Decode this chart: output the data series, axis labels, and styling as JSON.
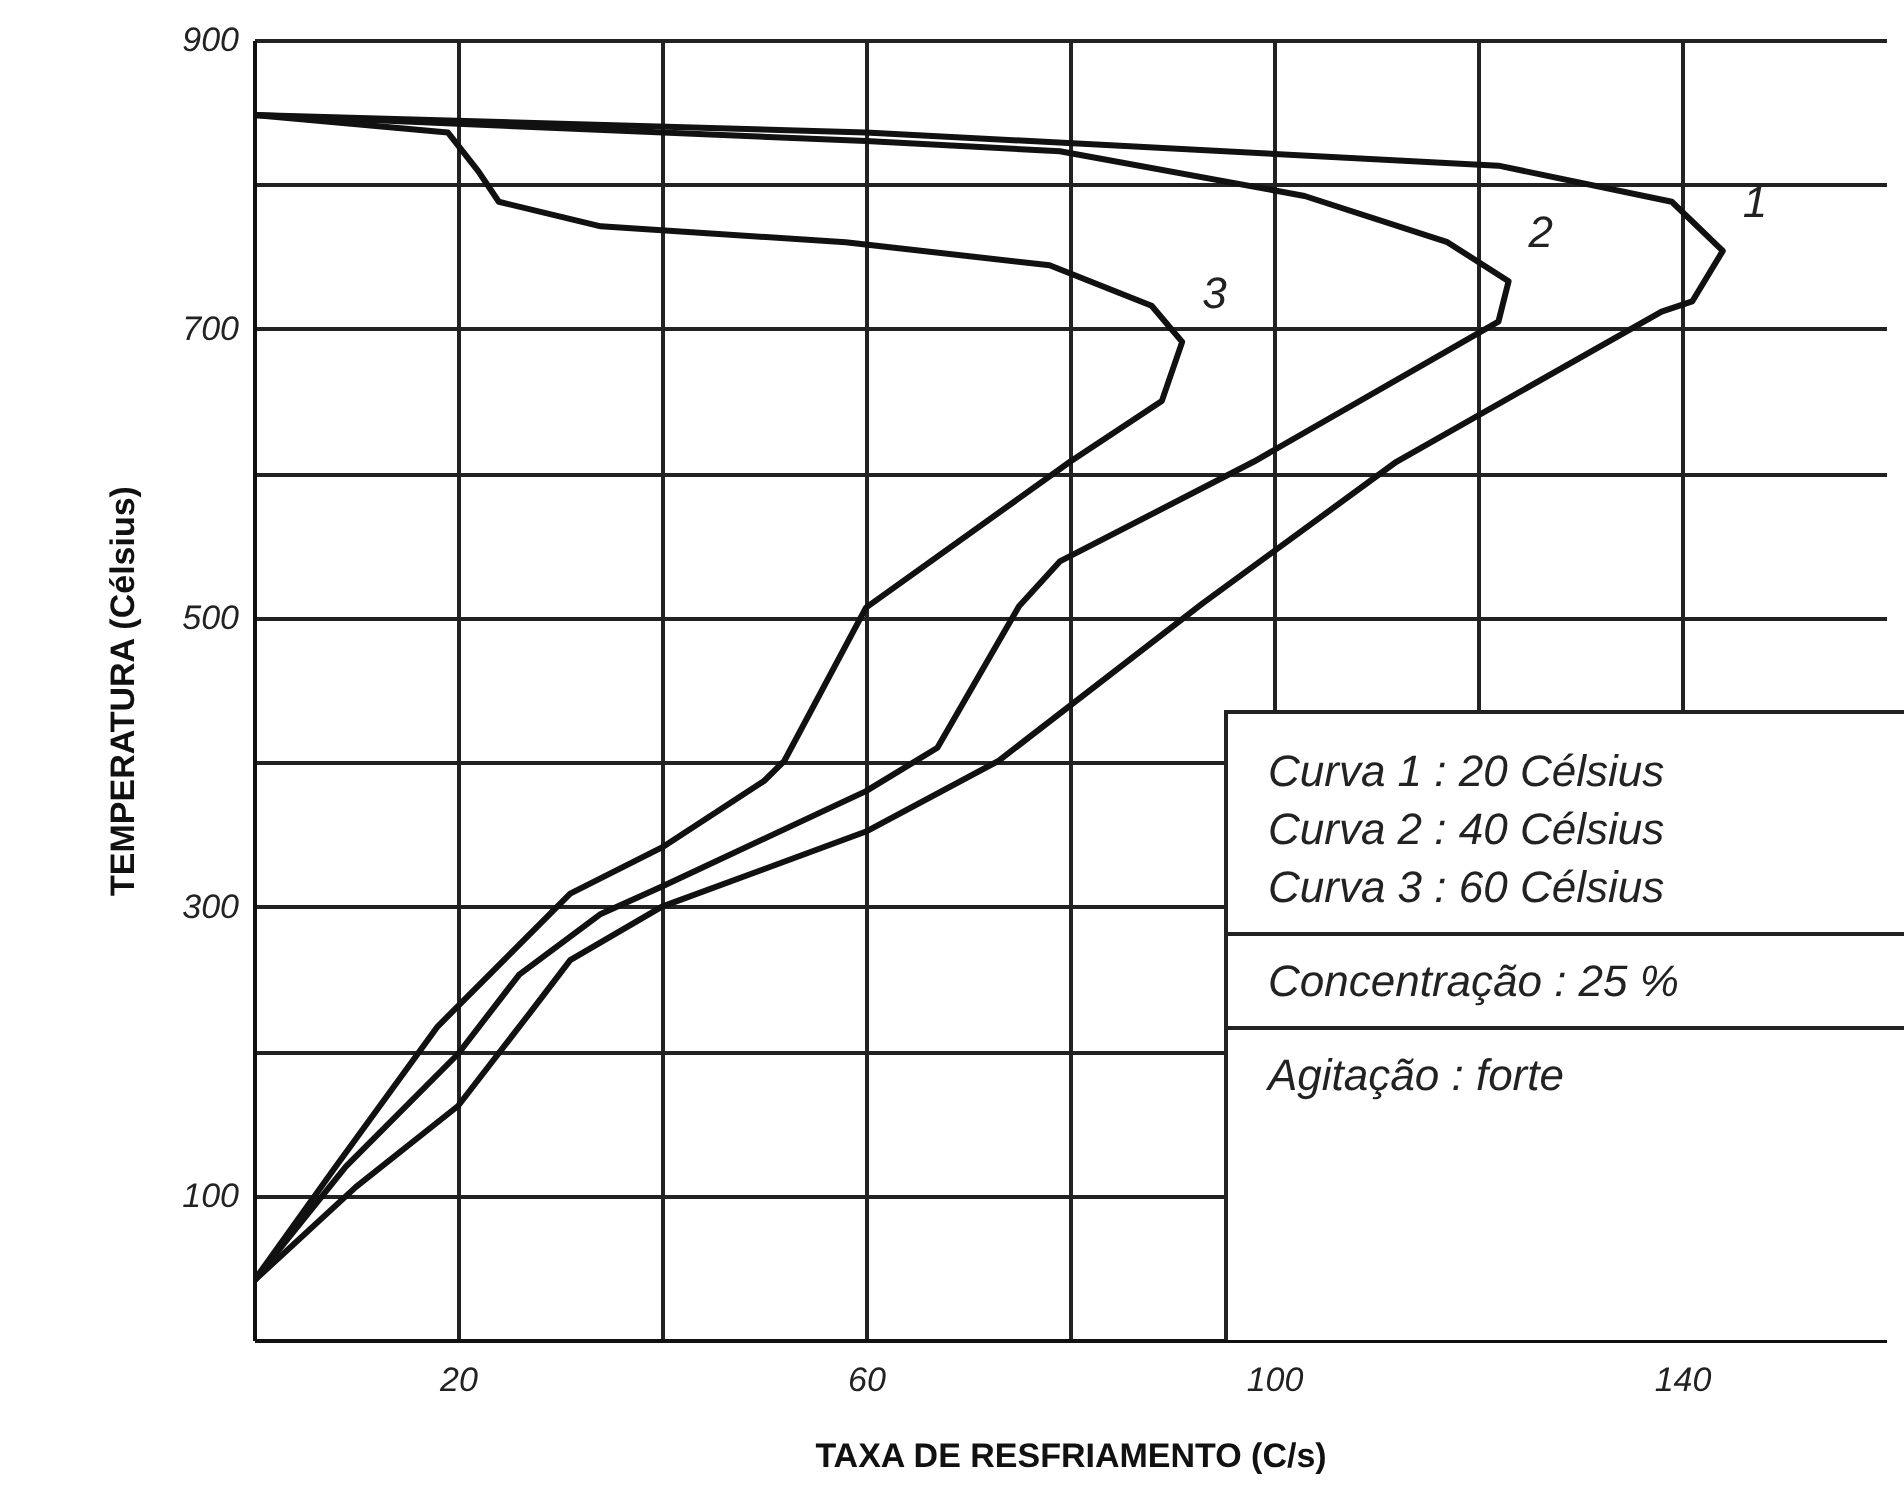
{
  "chart_data": {
    "type": "line",
    "xlabel": "TAXA DE RESFRIAMENTO (C/s)",
    "ylabel": "TEMPERATURA (Célsius)",
    "xlim": [
      0,
      160
    ],
    "ylim": [
      0,
      900
    ],
    "xticks": [
      20,
      {
        "value": 40,
        "label": null
      },
      60,
      {
        "value": 80,
        "label": null
      },
      100,
      {
        "value": 120,
        "label": null
      },
      140
    ],
    "yticks": [
      100,
      {
        "value": 200,
        "label": null
      },
      300,
      {
        "value": 400,
        "label": null
      },
      500,
      {
        "value": 600,
        "label": null
      },
      700,
      {
        "value": 800,
        "label": null
      },
      900
    ],
    "grid": true,
    "marker": "none",
    "line_style": "solid",
    "series": [
      {
        "name": "1",
        "color": "#111111",
        "x": [
          0,
          60,
          122,
          139,
          144,
          141,
          138,
          112,
          93,
          73,
          60,
          40,
          31,
          27,
          20,
          10,
          0
        ],
        "values": [
          848,
          836,
          813,
          788,
          754,
          719,
          712,
          608,
          510,
          401,
          352,
          300,
          263,
          226,
          162,
          106,
          41
        ]
      },
      {
        "name": "2",
        "color": "#111111",
        "x": [
          0,
          60,
          79,
          103,
          117,
          123,
          122,
          98,
          79,
          75,
          67,
          60,
          40,
          34,
          26,
          20,
          9,
          0
        ],
        "values": [
          848,
          830,
          823,
          792,
          760,
          733,
          705,
          608,
          539,
          508,
          410,
          380,
          314,
          295,
          253,
          198,
          120,
          41
        ]
      },
      {
        "name": "3",
        "color": "#111111",
        "x": [
          0,
          19,
          22,
          24,
          34,
          58,
          78,
          88,
          91,
          89,
          80,
          60,
          52,
          50,
          40,
          31,
          18,
          8,
          0
        ],
        "values": [
          848,
          836,
          809,
          788,
          771,
          760,
          744,
          716,
          691,
          650,
          608,
          507,
          401,
          387,
          341,
          309,
          217,
          120,
          41
        ]
      }
    ],
    "annotations": [
      "Curva 1 : 20 Célsius",
      "Curva 2 : 40 Célsius",
      "Curva 3 : 60 Célsius",
      "Concentração : 25 %",
      "Agitação : forte"
    ]
  }
}
